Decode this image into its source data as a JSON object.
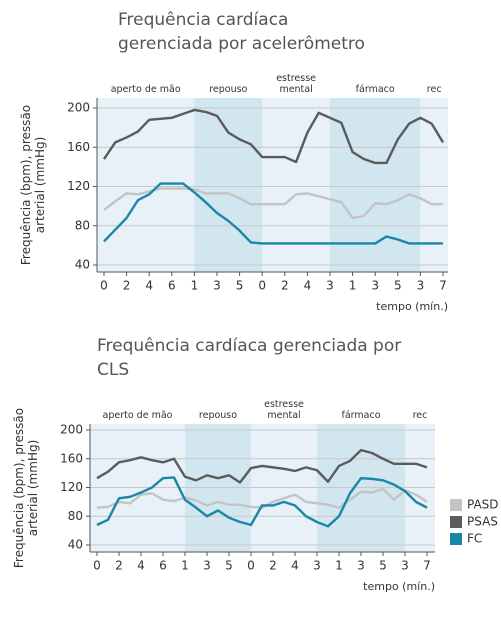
{
  "chart_data": [
    {
      "type": "line",
      "title": "Frequência cardíaca gerenciada por acelerômetro",
      "ylabel": "Frequência (bpm), pressão arterial (mmHg)",
      "xlabel": "tempo (mín.)",
      "categories": [
        "0",
        null,
        "2",
        null,
        "4",
        null,
        "6",
        null,
        "1",
        null,
        "3",
        null,
        "5",
        null,
        "0",
        null,
        "2",
        null,
        "4",
        null,
        "3",
        null,
        "1",
        null,
        "3",
        null,
        "5",
        null,
        "3",
        null,
        "7"
      ],
      "ylim": [
        40,
        200
      ],
      "yticks": [
        40,
        80,
        120,
        160,
        200
      ],
      "grid": true,
      "phases": [
        {
          "label": "aperto de mão",
          "from": 0,
          "to": 8
        },
        {
          "label": "repouso",
          "from": 8,
          "to": 14
        },
        {
          "label": "estresse mental",
          "from": 14,
          "to": 20
        },
        {
          "label": "fármaco",
          "from": 20,
          "to": 28
        },
        {
          "label": "rec",
          "from": 28,
          "to": 30
        }
      ],
      "series": [
        {
          "color": "#c4c4c4",
          "values": [
            96,
            105,
            113,
            112,
            115,
            118,
            118,
            118,
            117,
            113,
            113,
            113,
            108,
            102,
            102,
            102,
            102,
            112,
            113,
            110,
            107,
            104,
            88,
            90,
            103,
            102,
            106,
            112,
            108,
            102,
            102
          ]
        },
        {
          "color": "#5b5b5b",
          "values": [
            148,
            165,
            170,
            176,
            188,
            189,
            190,
            194,
            198,
            196,
            192,
            175,
            168,
            163,
            150,
            150,
            150,
            145,
            175,
            195,
            190,
            185,
            155,
            148,
            144,
            144,
            168,
            184,
            190,
            184,
            165
          ]
        },
        {
          "color": "#1a86a8",
          "values": [
            64,
            76,
            88,
            106,
            112,
            123,
            123,
            123,
            114,
            104,
            93,
            85,
            75,
            63,
            62,
            62,
            62,
            62,
            62,
            62,
            62,
            62,
            62,
            62,
            62,
            69,
            66,
            62,
            62,
            62,
            62
          ]
        }
      ]
    },
    {
      "type": "line",
      "title": "Frequência cardíaca gerenciada por CLS",
      "ylabel": "Frequência (bpm), pressão arterial (mmHg)",
      "xlabel": "tempo (mín.)",
      "categories": [
        "0",
        null,
        "2",
        null,
        "4",
        null,
        "6",
        null,
        "1",
        null,
        "3",
        null,
        "5",
        null,
        "0",
        null,
        "2",
        null,
        "4",
        null,
        "3",
        null,
        "1",
        null,
        "3",
        null,
        "5",
        null,
        "3",
        null,
        "7"
      ],
      "ylim": [
        40,
        200
      ],
      "yticks": [
        40,
        80,
        120,
        160,
        200
      ],
      "grid": true,
      "legend": "right",
      "phases": [
        {
          "label": "aperto de mão",
          "from": 0,
          "to": 8
        },
        {
          "label": "repouso",
          "from": 8,
          "to": 14
        },
        {
          "label": "estresse mental",
          "from": 14,
          "to": 20
        },
        {
          "label": "fármaco",
          "from": 20,
          "to": 28
        },
        {
          "label": "rec",
          "from": 28,
          "to": 30
        }
      ],
      "series": [
        {
          "name": "PASD",
          "color": "#c4c4c4",
          "values": [
            92,
            93,
            100,
            98,
            110,
            112,
            103,
            101,
            106,
            102,
            95,
            100,
            96,
            96,
            93,
            92,
            100,
            105,
            110,
            100,
            98,
            96,
            92,
            103,
            114,
            113,
            118,
            103,
            116,
            110,
            100
          ]
        },
        {
          "name": "PSAS",
          "color": "#5b5b5b",
          "values": [
            133,
            142,
            155,
            158,
            162,
            158,
            155,
            160,
            135,
            130,
            137,
            133,
            137,
            127,
            147,
            150,
            148,
            146,
            143,
            148,
            144,
            128,
            150,
            157,
            172,
            168,
            160,
            153,
            153,
            153,
            148
          ]
        },
        {
          "name": "FC",
          "color": "#1a86a8",
          "values": [
            68,
            75,
            105,
            107,
            113,
            120,
            133,
            134,
            103,
            92,
            80,
            88,
            78,
            72,
            68,
            95,
            95,
            100,
            95,
            80,
            72,
            66,
            80,
            112,
            133,
            132,
            130,
            124,
            115,
            100,
            92
          ]
        }
      ]
    }
  ]
}
